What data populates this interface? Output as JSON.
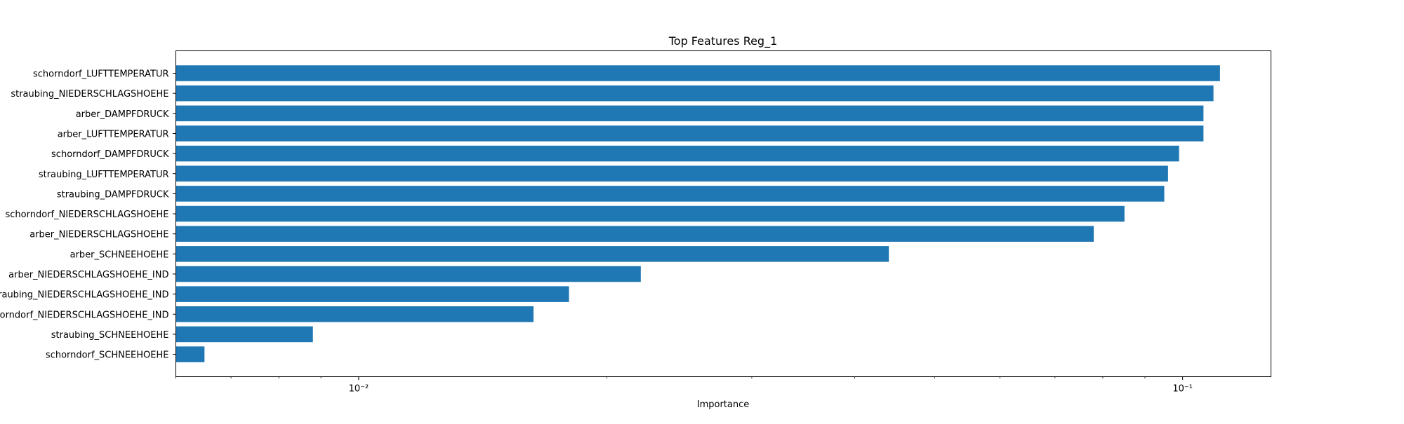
{
  "chart_data": {
    "type": "bar",
    "orientation": "horizontal",
    "title": "Top Features Reg_1",
    "xlabel": "Importance",
    "ylabel": "",
    "xscale": "log",
    "xlim": [
      0.006,
      0.128
    ],
    "grid": false,
    "legend": "none",
    "bar_color": "#1f77b4",
    "categories": [
      "schorndorf_LUFTTEMPERATUR",
      "straubing_NIEDERSCHLAGSHOEHE",
      "arber_DAMPFDRUCK",
      "arber_LUFTTEMPERATUR",
      "schorndorf_DAMPFDRUCK",
      "straubing_LUFTTEMPERATUR",
      "straubing_DAMPFDRUCK",
      "schorndorf_NIEDERSCHLAGSHOEHE",
      "arber_NIEDERSCHLAGSHOEHE",
      "arber_SCHNEEHOEHE",
      "arber_NIEDERSCHLAGSHOEHE_IND",
      "straubing_NIEDERSCHLAGSHOEHE_IND",
      "schorndorf_NIEDERSCHLAGSHOEHE_IND",
      "straubing_SCHNEEHOEHE",
      "schorndorf_SCHNEEHOEHE"
    ],
    "values": [
      0.111,
      0.109,
      0.106,
      0.106,
      0.099,
      0.096,
      0.095,
      0.085,
      0.078,
      0.044,
      0.022,
      0.018,
      0.0163,
      0.0088,
      0.0065
    ],
    "major_ticks": [
      0.01,
      0.1
    ],
    "major_tick_labels": [
      "10⁻²",
      "10⁻¹"
    ],
    "minor_ticks": [
      0.006,
      0.007,
      0.008,
      0.009,
      0.02,
      0.03,
      0.04,
      0.05,
      0.06,
      0.07,
      0.08,
      0.09
    ]
  }
}
